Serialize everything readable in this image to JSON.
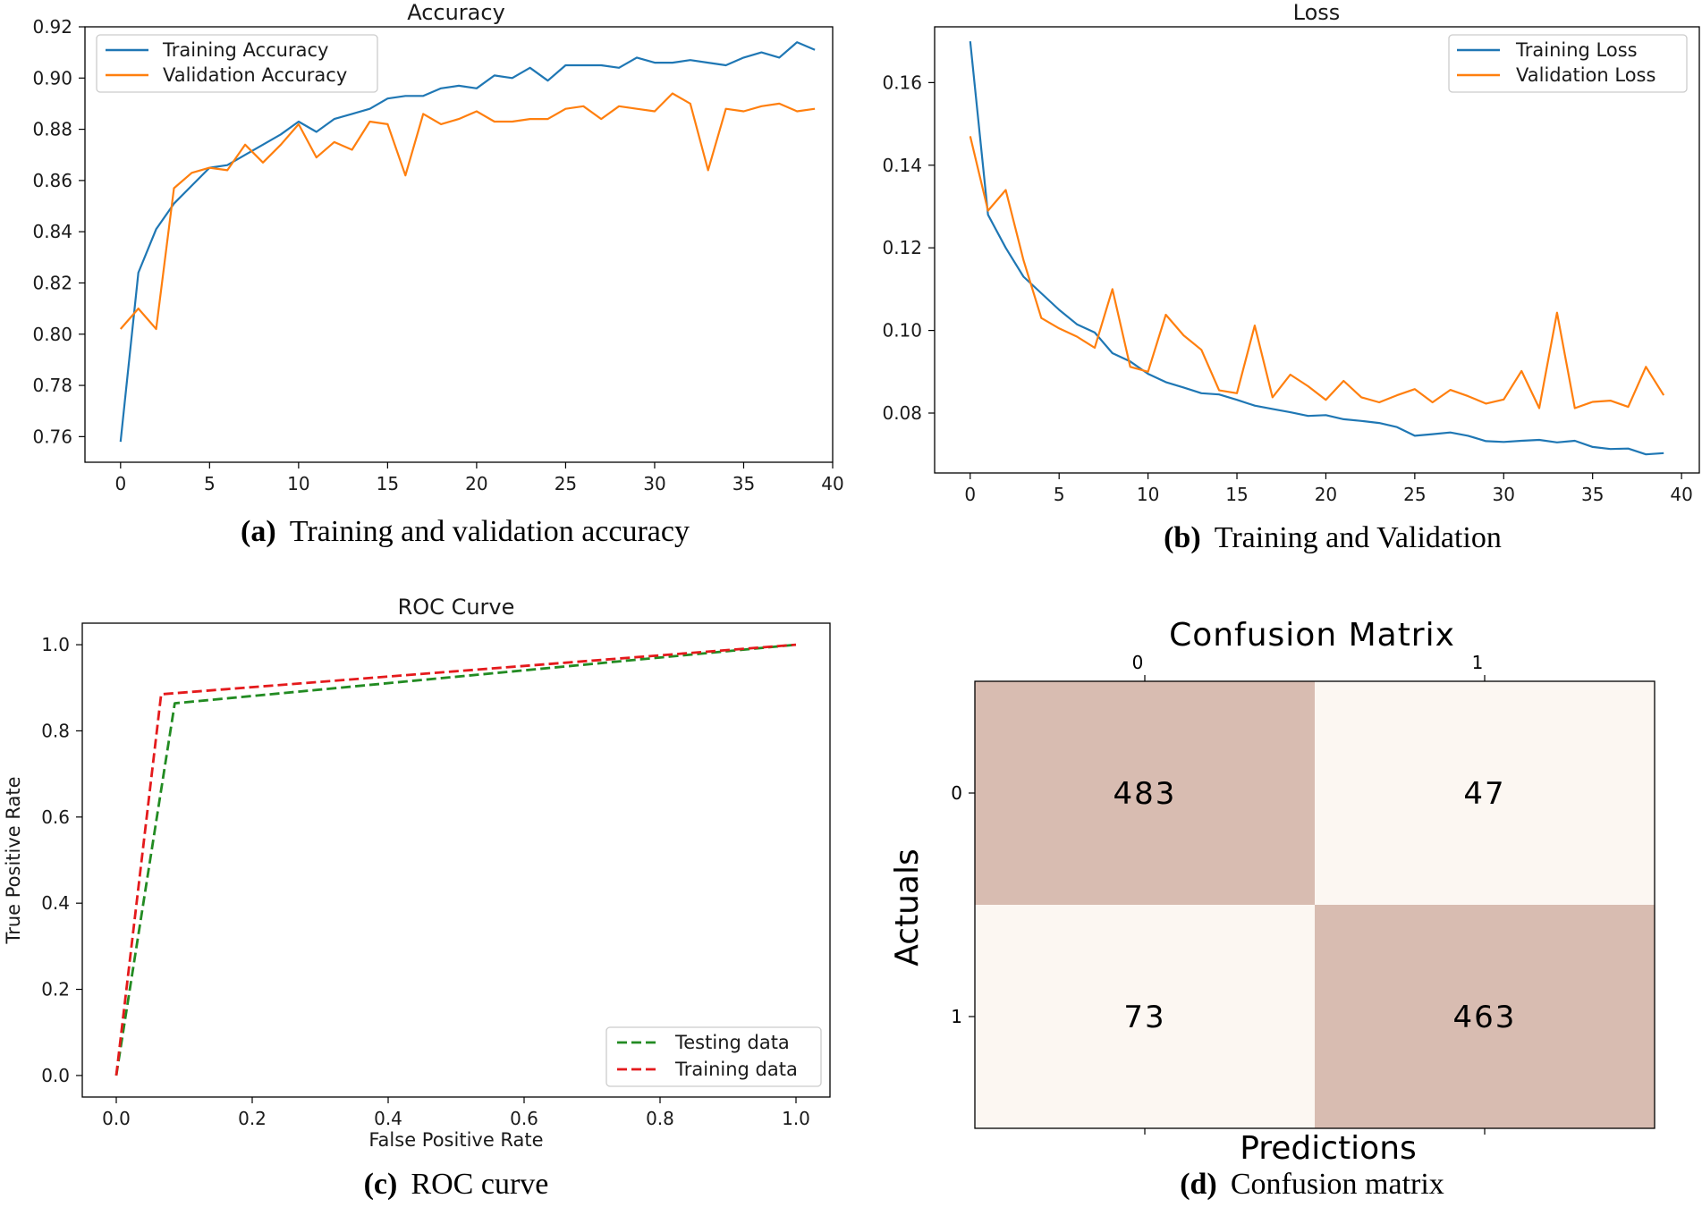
{
  "colors": {
    "blue": "#1f77b4",
    "orange": "#ff7f0e",
    "green": "#228b22",
    "red": "#e41a1c",
    "cm_dark": "#d8bcb1",
    "cm_light": "#fcf7f2"
  },
  "captions": {
    "a": {
      "label": "(a)",
      "text": "Training and validation accuracy"
    },
    "b": {
      "label": "(b)",
      "text": "Training and Validation"
    },
    "c": {
      "label": "(c)",
      "text": "ROC curve"
    },
    "d": {
      "label": "(d)",
      "text": "Confusion matrix"
    }
  },
  "chart_data": [
    {
      "id": "accuracy",
      "type": "line",
      "title": "Accuracy",
      "xlabel": "",
      "ylabel": "",
      "xlim": [
        -2,
        40
      ],
      "ylim": [
        0.75,
        0.92
      ],
      "xticks": [
        0,
        5,
        10,
        15,
        20,
        25,
        30,
        35,
        40
      ],
      "yticks": [
        0.76,
        0.78,
        0.8,
        0.82,
        0.84,
        0.86,
        0.88,
        0.9,
        0.92
      ],
      "ytick_labels": [
        "0.76",
        "0.78",
        "0.80",
        "0.82",
        "0.84",
        "0.86",
        "0.88",
        "0.90",
        "0.92"
      ],
      "legend": "top-left",
      "x": [
        0,
        1,
        2,
        3,
        4,
        5,
        6,
        7,
        8,
        9,
        10,
        11,
        12,
        13,
        14,
        15,
        16,
        17,
        18,
        19,
        20,
        21,
        22,
        23,
        24,
        25,
        26,
        27,
        28,
        29,
        30,
        31,
        32,
        33,
        34,
        35,
        36,
        37,
        38,
        39
      ],
      "series": [
        {
          "name": "Training Accuracy",
          "color": "#1f77b4",
          "dash": false,
          "values": [
            0.758,
            0.824,
            0.841,
            0.851,
            0.858,
            0.865,
            0.866,
            0.87,
            0.874,
            0.878,
            0.883,
            0.879,
            0.884,
            0.886,
            0.888,
            0.892,
            0.893,
            0.893,
            0.896,
            0.897,
            0.896,
            0.901,
            0.9,
            0.904,
            0.899,
            0.905,
            0.905,
            0.905,
            0.904,
            0.908,
            0.906,
            0.906,
            0.907,
            0.906,
            0.905,
            0.908,
            0.91,
            0.908,
            0.914,
            0.911
          ]
        },
        {
          "name": "Validation Accuracy",
          "color": "#ff7f0e",
          "dash": false,
          "values": [
            0.802,
            0.81,
            0.802,
            0.857,
            0.863,
            0.865,
            0.864,
            0.874,
            0.867,
            0.874,
            0.882,
            0.869,
            0.875,
            0.872,
            0.883,
            0.882,
            0.862,
            0.886,
            0.882,
            0.884,
            0.887,
            0.883,
            0.883,
            0.884,
            0.884,
            0.888,
            0.889,
            0.884,
            0.889,
            0.888,
            0.887,
            0.894,
            0.89,
            0.864,
            0.888,
            0.887,
            0.889,
            0.89,
            0.887,
            0.888
          ]
        }
      ]
    },
    {
      "id": "loss",
      "type": "line",
      "title": "Loss",
      "xlabel": "",
      "ylabel": "",
      "xlim": [
        -2,
        41
      ],
      "ylim": [
        0.0655,
        0.1735
      ],
      "xticks": [
        0,
        5,
        10,
        15,
        20,
        25,
        30,
        35,
        40
      ],
      "yticks": [
        0.08,
        0.1,
        0.12,
        0.14,
        0.16
      ],
      "ytick_labels": [
        "0.08",
        "0.10",
        "0.12",
        "0.14",
        "0.16"
      ],
      "legend": "top-right",
      "x": [
        0,
        1,
        2,
        3,
        4,
        5,
        6,
        7,
        8,
        9,
        10,
        11,
        12,
        13,
        14,
        15,
        16,
        17,
        18,
        19,
        20,
        21,
        22,
        23,
        24,
        25,
        26,
        27,
        28,
        29,
        30,
        31,
        32,
        33,
        34,
        35,
        36,
        37,
        38,
        39
      ],
      "series": [
        {
          "name": "Training Loss",
          "color": "#1f77b4",
          "dash": false,
          "values": [
            0.17,
            0.128,
            0.12,
            0.113,
            0.109,
            0.105,
            0.1015,
            0.0995,
            0.0945,
            0.0925,
            0.0895,
            0.0875,
            0.0862,
            0.0848,
            0.0845,
            0.0832,
            0.0818,
            0.081,
            0.0802,
            0.0793,
            0.0795,
            0.0785,
            0.0781,
            0.0776,
            0.0766,
            0.0745,
            0.0749,
            0.0753,
            0.0745,
            0.0732,
            0.073,
            0.0733,
            0.0735,
            0.0729,
            0.0733,
            0.0718,
            0.0713,
            0.0714,
            0.07,
            0.0703
          ]
        },
        {
          "name": "Validation Loss",
          "color": "#ff7f0e",
          "dash": false,
          "values": [
            0.147,
            0.129,
            0.134,
            0.117,
            0.103,
            0.1005,
            0.0985,
            0.0958,
            0.11,
            0.0912,
            0.09,
            0.1038,
            0.0988,
            0.0953,
            0.0855,
            0.0848,
            0.1012,
            0.0838,
            0.0893,
            0.0865,
            0.0832,
            0.0878,
            0.0838,
            0.0826,
            0.0843,
            0.0858,
            0.0826,
            0.0856,
            0.0841,
            0.0823,
            0.0833,
            0.0902,
            0.0812,
            0.1043,
            0.0812,
            0.0827,
            0.083,
            0.0815,
            0.0912,
            0.0843
          ]
        }
      ]
    },
    {
      "id": "roc",
      "type": "line",
      "title": "ROC Curve",
      "xlabel": "False Positive Rate",
      "ylabel": "True Positive Rate",
      "xlim": [
        -0.05,
        1.05
      ],
      "ylim": [
        -0.05,
        1.05
      ],
      "xticks": [
        0.0,
        0.2,
        0.4,
        0.6,
        0.8,
        1.0
      ],
      "xtick_labels": [
        "0.0",
        "0.2",
        "0.4",
        "0.6",
        "0.8",
        "1.0"
      ],
      "yticks": [
        0.0,
        0.2,
        0.4,
        0.6,
        0.8,
        1.0
      ],
      "ytick_labels": [
        "0.0",
        "0.2",
        "0.4",
        "0.6",
        "0.8",
        "1.0"
      ],
      "legend": "bottom-right",
      "series": [
        {
          "name": "Testing data",
          "color": "#228b22",
          "dash": true,
          "x": [
            0.0,
            0.086,
            1.0
          ],
          "values": [
            0.0,
            0.864,
            1.0
          ]
        },
        {
          "name": "Training data",
          "color": "#e41a1c",
          "dash": true,
          "x": [
            0.0,
            0.066,
            1.0
          ],
          "values": [
            0.0,
            0.885,
            1.0
          ]
        }
      ]
    },
    {
      "id": "confusion",
      "type": "heatmap",
      "title": "Confusion Matrix",
      "xlabel": "Predictions",
      "ylabel": "Actuals",
      "x_categories": [
        "0",
        "1"
      ],
      "y_categories": [
        "0",
        "1"
      ],
      "values": [
        [
          483,
          47
        ],
        [
          73,
          463
        ]
      ]
    }
  ]
}
